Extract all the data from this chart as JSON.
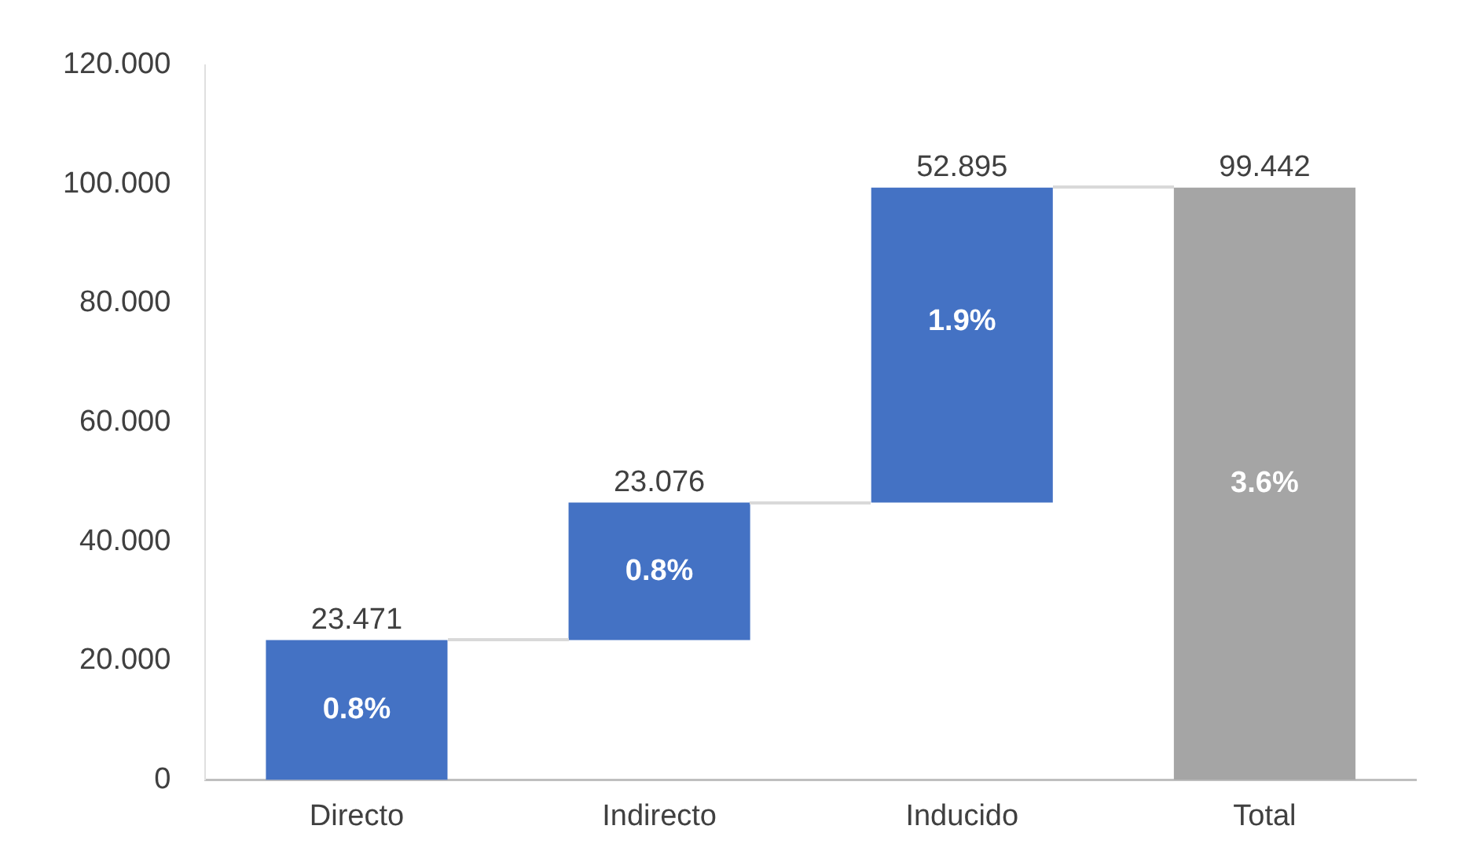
{
  "chart_data": {
    "type": "bar",
    "categories": [
      "Directo",
      "Indirecto",
      "Inducido",
      "Total"
    ],
    "values": [
      23.471,
      23.076,
      52.895,
      99.442
    ],
    "base": [
      0,
      23.471,
      46.547,
      0
    ],
    "colors": [
      "#4472c4",
      "#4472c4",
      "#4472c4",
      "#a5a5a5"
    ],
    "value_labels": [
      "23.471",
      "23.076",
      "52.895",
      "99.442"
    ],
    "annotations": [
      "0.8%",
      "0.8%",
      "1.9%",
      "3.6%"
    ],
    "ylim": [
      0,
      120
    ],
    "yticks": [
      {
        "value": 0,
        "label": "0"
      },
      {
        "value": 20,
        "label": "20.000"
      },
      {
        "value": 40,
        "label": "40.000"
      },
      {
        "value": 60,
        "label": "60.000"
      },
      {
        "value": 80,
        "label": "80.000"
      },
      {
        "value": 100,
        "label": "100.000"
      },
      {
        "value": 120,
        "label": "120.000"
      }
    ],
    "grid": false
  }
}
